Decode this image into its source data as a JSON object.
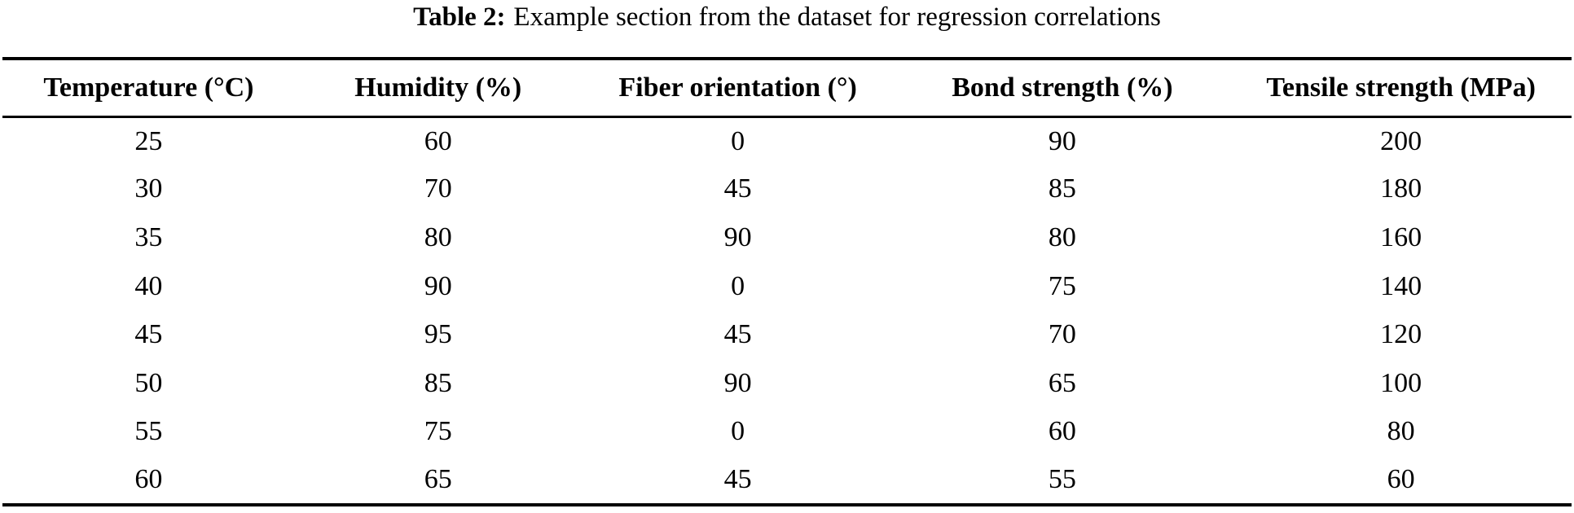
{
  "caption": {
    "label": "Table 2:",
    "text": "Example section from the dataset for regression correlations"
  },
  "table": {
    "columns": [
      "Temperature (°C)",
      "Humidity (%)",
      "Fiber orientation (°)",
      "Bond strength (%)",
      "Tensile strength (MPa)"
    ],
    "rows": [
      [
        "25",
        "60",
        "0",
        "90",
        "200"
      ],
      [
        "30",
        "70",
        "45",
        "85",
        "180"
      ],
      [
        "35",
        "80",
        "90",
        "80",
        "160"
      ],
      [
        "40",
        "90",
        "0",
        "75",
        "140"
      ],
      [
        "45",
        "95",
        "45",
        "70",
        "120"
      ],
      [
        "50",
        "85",
        "90",
        "65",
        "100"
      ],
      [
        "55",
        "75",
        "0",
        "60",
        "80"
      ],
      [
        "60",
        "65",
        "45",
        "55",
        "60"
      ]
    ]
  },
  "chart_data": {
    "type": "table",
    "title": "Table 2: Example section from the dataset for regression correlations",
    "columns": [
      "Temperature (°C)",
      "Humidity (%)",
      "Fiber orientation (°)",
      "Bond strength (%)",
      "Tensile strength (MPa)"
    ],
    "rows": [
      [
        25,
        60,
        0,
        90,
        200
      ],
      [
        30,
        70,
        45,
        85,
        180
      ],
      [
        35,
        80,
        90,
        80,
        160
      ],
      [
        40,
        90,
        0,
        75,
        140
      ],
      [
        45,
        95,
        45,
        70,
        120
      ],
      [
        50,
        85,
        90,
        65,
        100
      ],
      [
        55,
        75,
        0,
        60,
        80
      ],
      [
        60,
        65,
        45,
        55,
        60
      ]
    ]
  },
  "colors": {
    "text": "#000000",
    "background": "#ffffff",
    "rule": "#000000"
  }
}
